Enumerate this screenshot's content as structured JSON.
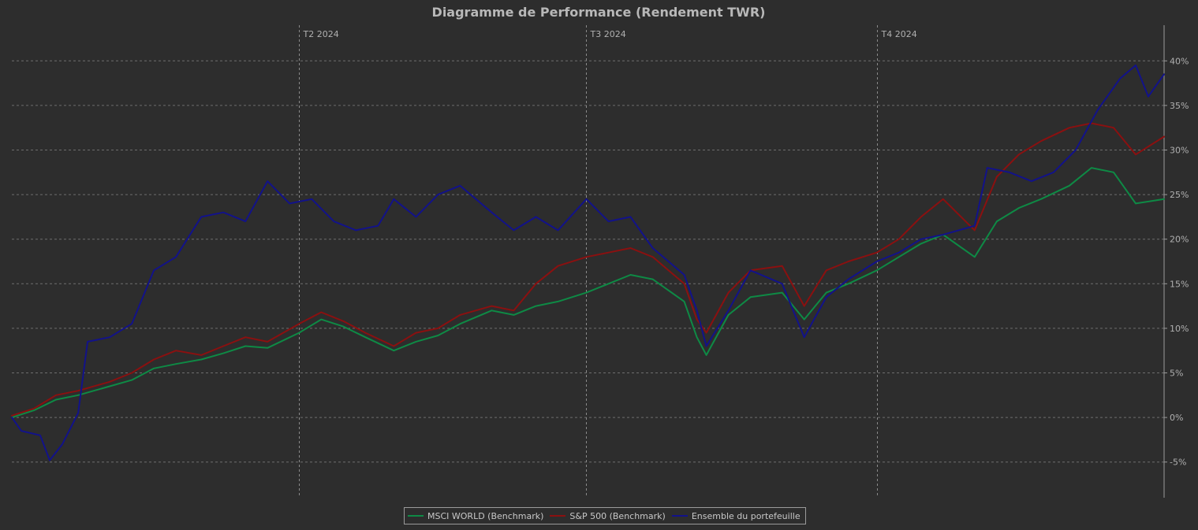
{
  "chart_data": {
    "type": "line",
    "title": "Diagramme de Performance (Rendement TWR)",
    "xlabel": "",
    "ylabel": "",
    "ylim": [
      -9,
      44
    ],
    "grid": true,
    "legend_position": "bottom-center",
    "y_ticks": [
      -5,
      0,
      5,
      10,
      15,
      20,
      25,
      30,
      35,
      40
    ],
    "y_tick_labels": [
      "-5%",
      "0%",
      "5%",
      "10%",
      "15%",
      "20%",
      "25%",
      "30%",
      "35%",
      "40%"
    ],
    "x_axis": {
      "type": "date",
      "start": "2024-01-01",
      "end": "2024-12-31"
    },
    "quarter_markers": [
      {
        "label": "T2 2024",
        "date": "2024-04-01"
      },
      {
        "label": "T3 2024",
        "date": "2024-07-01"
      },
      {
        "label": "T4 2024",
        "date": "2024-10-01"
      }
    ],
    "series": [
      {
        "name": "MSCI WORLD (Benchmark)",
        "color": "#0e8a45",
        "points": [
          [
            "2024-01-01",
            0.0
          ],
          [
            "2024-01-08",
            0.8
          ],
          [
            "2024-01-15",
            2.0
          ],
          [
            "2024-01-22",
            2.5
          ],
          [
            "2024-02-01",
            3.5
          ],
          [
            "2024-02-08",
            4.2
          ],
          [
            "2024-02-15",
            5.5
          ],
          [
            "2024-02-22",
            6.0
          ],
          [
            "2024-03-01",
            6.5
          ],
          [
            "2024-03-08",
            7.2
          ],
          [
            "2024-03-15",
            8.0
          ],
          [
            "2024-03-22",
            7.8
          ],
          [
            "2024-04-01",
            9.5
          ],
          [
            "2024-04-08",
            11.0
          ],
          [
            "2024-04-15",
            10.2
          ],
          [
            "2024-04-22",
            9.0
          ],
          [
            "2024-05-01",
            7.5
          ],
          [
            "2024-05-08",
            8.5
          ],
          [
            "2024-05-15",
            9.2
          ],
          [
            "2024-05-22",
            10.5
          ],
          [
            "2024-06-01",
            12.0
          ],
          [
            "2024-06-08",
            11.5
          ],
          [
            "2024-06-15",
            12.5
          ],
          [
            "2024-06-22",
            13.0
          ],
          [
            "2024-07-01",
            14.0
          ],
          [
            "2024-07-08",
            15.0
          ],
          [
            "2024-07-15",
            16.0
          ],
          [
            "2024-07-22",
            15.5
          ],
          [
            "2024-08-01",
            13.0
          ],
          [
            "2024-08-05",
            9.0
          ],
          [
            "2024-08-08",
            7.0
          ],
          [
            "2024-08-15",
            11.5
          ],
          [
            "2024-08-22",
            13.5
          ],
          [
            "2024-09-01",
            14.0
          ],
          [
            "2024-09-08",
            11.0
          ],
          [
            "2024-09-15",
            14.0
          ],
          [
            "2024-09-22",
            15.0
          ],
          [
            "2024-10-01",
            16.5
          ],
          [
            "2024-10-08",
            18.0
          ],
          [
            "2024-10-15",
            19.5
          ],
          [
            "2024-10-22",
            20.5
          ],
          [
            "2024-11-01",
            18.0
          ],
          [
            "2024-11-08",
            22.0
          ],
          [
            "2024-11-15",
            23.5
          ],
          [
            "2024-11-22",
            24.5
          ],
          [
            "2024-12-01",
            26.0
          ],
          [
            "2024-12-08",
            28.0
          ],
          [
            "2024-12-15",
            27.5
          ],
          [
            "2024-12-22",
            24.0
          ],
          [
            "2024-12-31",
            24.5
          ]
        ]
      },
      {
        "name": "S&P 500 (Benchmark)",
        "color": "#8b1010",
        "points": [
          [
            "2024-01-01",
            0.2
          ],
          [
            "2024-01-08",
            1.0
          ],
          [
            "2024-01-15",
            2.5
          ],
          [
            "2024-01-22",
            3.0
          ],
          [
            "2024-02-01",
            4.0
          ],
          [
            "2024-02-08",
            5.0
          ],
          [
            "2024-02-15",
            6.5
          ],
          [
            "2024-02-22",
            7.5
          ],
          [
            "2024-03-01",
            7.0
          ],
          [
            "2024-03-08",
            8.0
          ],
          [
            "2024-03-15",
            9.0
          ],
          [
            "2024-03-22",
            8.5
          ],
          [
            "2024-04-01",
            10.5
          ],
          [
            "2024-04-08",
            11.8
          ],
          [
            "2024-04-15",
            10.8
          ],
          [
            "2024-04-22",
            9.5
          ],
          [
            "2024-05-01",
            8.0
          ],
          [
            "2024-05-08",
            9.5
          ],
          [
            "2024-05-15",
            10.0
          ],
          [
            "2024-05-22",
            11.5
          ],
          [
            "2024-06-01",
            12.5
          ],
          [
            "2024-06-08",
            12.0
          ],
          [
            "2024-06-15",
            15.0
          ],
          [
            "2024-06-22",
            17.0
          ],
          [
            "2024-07-01",
            18.0
          ],
          [
            "2024-07-08",
            18.5
          ],
          [
            "2024-07-15",
            19.0
          ],
          [
            "2024-07-22",
            18.0
          ],
          [
            "2024-08-01",
            15.0
          ],
          [
            "2024-08-05",
            11.0
          ],
          [
            "2024-08-08",
            9.5
          ],
          [
            "2024-08-15",
            14.0
          ],
          [
            "2024-08-22",
            16.5
          ],
          [
            "2024-09-01",
            17.0
          ],
          [
            "2024-09-08",
            12.5
          ],
          [
            "2024-09-15",
            16.5
          ],
          [
            "2024-09-22",
            17.5
          ],
          [
            "2024-10-01",
            18.5
          ],
          [
            "2024-10-08",
            20.0
          ],
          [
            "2024-10-15",
            22.5
          ],
          [
            "2024-10-22",
            24.5
          ],
          [
            "2024-11-01",
            21.0
          ],
          [
            "2024-11-08",
            27.0
          ],
          [
            "2024-11-15",
            29.5
          ],
          [
            "2024-11-22",
            31.0
          ],
          [
            "2024-12-01",
            32.5
          ],
          [
            "2024-12-08",
            33.0
          ],
          [
            "2024-12-15",
            32.5
          ],
          [
            "2024-12-22",
            29.5
          ],
          [
            "2024-12-31",
            31.5
          ]
        ]
      },
      {
        "name": "Ensemble du portefeuille",
        "color": "#12128a",
        "points": [
          [
            "2024-01-01",
            0.0
          ],
          [
            "2024-01-04",
            -1.5
          ],
          [
            "2024-01-10",
            -2.0
          ],
          [
            "2024-01-13",
            -4.8
          ],
          [
            "2024-01-17",
            -3.0
          ],
          [
            "2024-01-22",
            0.5
          ],
          [
            "2024-01-25",
            8.5
          ],
          [
            "2024-02-01",
            9.0
          ],
          [
            "2024-02-08",
            10.5
          ],
          [
            "2024-02-15",
            16.5
          ],
          [
            "2024-02-22",
            18.0
          ],
          [
            "2024-03-01",
            22.5
          ],
          [
            "2024-03-08",
            23.0
          ],
          [
            "2024-03-15",
            22.0
          ],
          [
            "2024-03-22",
            26.5
          ],
          [
            "2024-03-29",
            24.0
          ],
          [
            "2024-04-05",
            24.5
          ],
          [
            "2024-04-12",
            22.0
          ],
          [
            "2024-04-19",
            21.0
          ],
          [
            "2024-04-26",
            21.5
          ],
          [
            "2024-05-01",
            24.5
          ],
          [
            "2024-05-08",
            22.5
          ],
          [
            "2024-05-15",
            25.0
          ],
          [
            "2024-05-22",
            26.0
          ],
          [
            "2024-06-01",
            23.0
          ],
          [
            "2024-06-08",
            21.0
          ],
          [
            "2024-06-15",
            22.5
          ],
          [
            "2024-06-22",
            21.0
          ],
          [
            "2024-07-01",
            24.5
          ],
          [
            "2024-07-08",
            22.0
          ],
          [
            "2024-07-15",
            22.5
          ],
          [
            "2024-07-22",
            19.0
          ],
          [
            "2024-08-01",
            16.0
          ],
          [
            "2024-08-05",
            12.0
          ],
          [
            "2024-08-08",
            8.0
          ],
          [
            "2024-08-15",
            12.0
          ],
          [
            "2024-08-22",
            16.5
          ],
          [
            "2024-09-01",
            15.0
          ],
          [
            "2024-09-08",
            9.0
          ],
          [
            "2024-09-15",
            13.5
          ],
          [
            "2024-09-22",
            15.5
          ],
          [
            "2024-10-01",
            17.5
          ],
          [
            "2024-10-08",
            18.5
          ],
          [
            "2024-10-15",
            20.0
          ],
          [
            "2024-10-22",
            20.5
          ],
          [
            "2024-11-01",
            21.5
          ],
          [
            "2024-11-05",
            28.0
          ],
          [
            "2024-11-12",
            27.5
          ],
          [
            "2024-11-19",
            26.5
          ],
          [
            "2024-11-26",
            27.5
          ],
          [
            "2024-12-03",
            30.0
          ],
          [
            "2024-12-10",
            34.5
          ],
          [
            "2024-12-17",
            38.0
          ],
          [
            "2024-12-22",
            39.5
          ],
          [
            "2024-12-26",
            36.0
          ],
          [
            "2024-12-31",
            38.5
          ]
        ]
      }
    ]
  }
}
